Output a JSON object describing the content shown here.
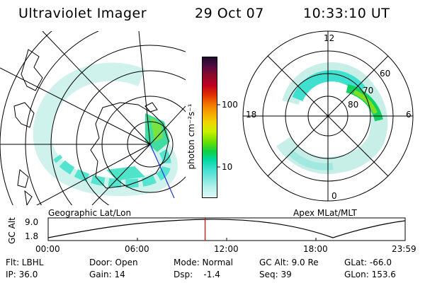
{
  "header": {
    "instrument": "Ultraviolet Imager",
    "date": "29 Oct 07",
    "time": "10:33:10 UT"
  },
  "geo_panel": {
    "label": "Geographic Lat/Lon"
  },
  "apex_panel": {
    "label": "Apex MLat/MLT",
    "mlt_labels": [
      "12",
      "18",
      "6",
      "0"
    ],
    "mlat_labels": [
      "60",
      "70",
      "80"
    ]
  },
  "colorbar": {
    "unit_label": "photon cm⁻²s⁻¹",
    "ticks": [
      "100",
      "10"
    ],
    "colors": [
      "#1a0a2e",
      "#5a0a40",
      "#8b0a2a",
      "#c00020",
      "#e03000",
      "#f07000",
      "#f5a800",
      "#f0d800",
      "#c8f000",
      "#70e000",
      "#10d040",
      "#00d8a0",
      "#40e0d0",
      "#80e8e0",
      "#b8f0ec",
      "#dcf6f4"
    ]
  },
  "altitude_plot": {
    "y_label": "GC Alt",
    "y_ticks": [
      "9.0",
      "1.8"
    ],
    "x_ticks": [
      "00:00",
      "06:00",
      "12:00",
      "18:00",
      "23:59"
    ],
    "current_time_fraction": 0.4397
  },
  "status": {
    "flt": "Flt: LBHL",
    "ip": "IP: 36.0",
    "door": "Door: Open",
    "gain": "Gain: 14",
    "mode": "Mode: Normal",
    "dsp": "Dsp:    -1.4",
    "gc_alt": "GC Alt: 9.0 Re",
    "seq": "Seq: 39",
    "glat": "GLat: -66.0",
    "glon": "GLon: 153.6"
  }
}
